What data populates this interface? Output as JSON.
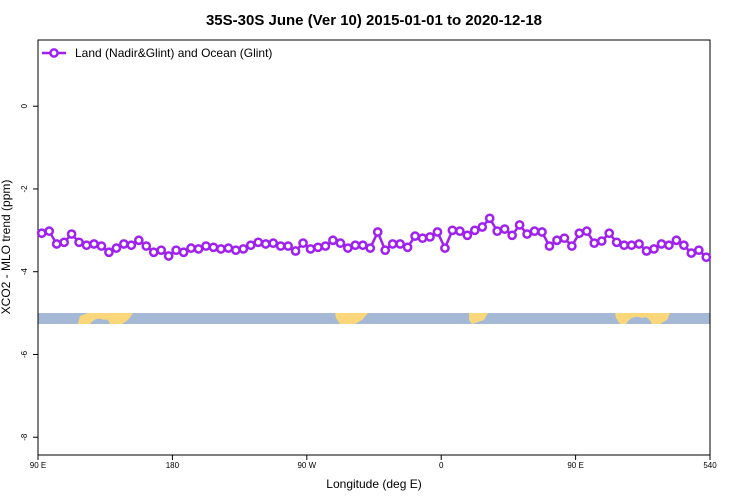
{
  "chart_data": {
    "type": "line",
    "title": "35S-30S June (Ver 10)   2015-01-01 to 2020-12-18",
    "x_label": "Longitude (deg E)",
    "y_label": "XCO2 - MLO trend (ppm)",
    "x": [
      92.5,
      97.5,
      102.5,
      107.5,
      112.5,
      117.5,
      122.5,
      127.5,
      132.5,
      137.5,
      142.5,
      147.5,
      152.5,
      157.5,
      162.5,
      167.5,
      172.5,
      177.5,
      182.5,
      187.5,
      192.5,
      197.5,
      202.5,
      207.5,
      212.5,
      217.5,
      222.5,
      227.5,
      232.5,
      237.5,
      242.5,
      247.5,
      252.5,
      257.5,
      262.5,
      267.5,
      272.5,
      277.5,
      282.5,
      287.5,
      292.5,
      297.5,
      302.5,
      307.5,
      312.5,
      317.5,
      322.5,
      327.5,
      332.5,
      337.5,
      342.5,
      347.5,
      352.5,
      357.5,
      362.5,
      367.5,
      372.5,
      377.5,
      382.5,
      387.5,
      392.5,
      397.5,
      402.5,
      407.5,
      412.5,
      417.5,
      422.5,
      427.5,
      432.5,
      437.5,
      442.5,
      447.5,
      452.5,
      457.5,
      462.5,
      467.5,
      472.5,
      477.5,
      482.5,
      487.5,
      492.5,
      497.5,
      502.5,
      507.5,
      512.5,
      517.5,
      522.5,
      527.5,
      532.5,
      537.5
    ],
    "series": [
      {
        "name": "Land (Nadir&Glint) and Ocean (Glint)",
        "color": "#a020f0",
        "values": [
          -3.07,
          -3.02,
          -3.33,
          -3.29,
          -3.09,
          -3.29,
          -3.36,
          -3.33,
          -3.38,
          -3.53,
          -3.43,
          -3.33,
          -3.36,
          -3.24,
          -3.38,
          -3.53,
          -3.48,
          -3.62,
          -3.48,
          -3.53,
          -3.43,
          -3.45,
          -3.38,
          -3.41,
          -3.45,
          -3.43,
          -3.48,
          -3.45,
          -3.36,
          -3.29,
          -3.33,
          -3.31,
          -3.38,
          -3.38,
          -3.5,
          -3.31,
          -3.45,
          -3.41,
          -3.38,
          -3.24,
          -3.31,
          -3.43,
          -3.36,
          -3.36,
          -3.43,
          -3.04,
          -3.48,
          -3.33,
          -3.33,
          -3.41,
          -3.14,
          -3.19,
          -3.16,
          -3.04,
          -3.43,
          -3.0,
          -3.02,
          -3.12,
          -3.0,
          -2.92,
          -2.71,
          -3.02,
          -2.97,
          -3.12,
          -2.87,
          -3.09,
          -3.02,
          -3.04,
          -3.38,
          -3.24,
          -3.19,
          -3.38,
          -3.07,
          -3.02,
          -3.31,
          -3.26,
          -3.07,
          -3.29,
          -3.36,
          -3.36,
          -3.33,
          -3.5,
          -3.45,
          -3.33,
          -3.36,
          -3.24,
          -3.36,
          -3.55,
          -3.48,
          -3.65
        ]
      }
    ],
    "xlim": [
      90,
      540
    ],
    "ylim": [
      -8.43,
      1.6
    ],
    "xticks": [
      {
        "value": 90,
        "label": "90 E"
      },
      180,
      {
        "value": 270,
        "label": "90 W"
      },
      {
        "value": 360,
        "label": "0"
      },
      {
        "value": 450,
        "label": "90 E"
      },
      540
    ],
    "yticks": [
      0,
      -2,
      -4,
      -6,
      -8
    ],
    "legend": "top-left",
    "grid": false
  }
}
